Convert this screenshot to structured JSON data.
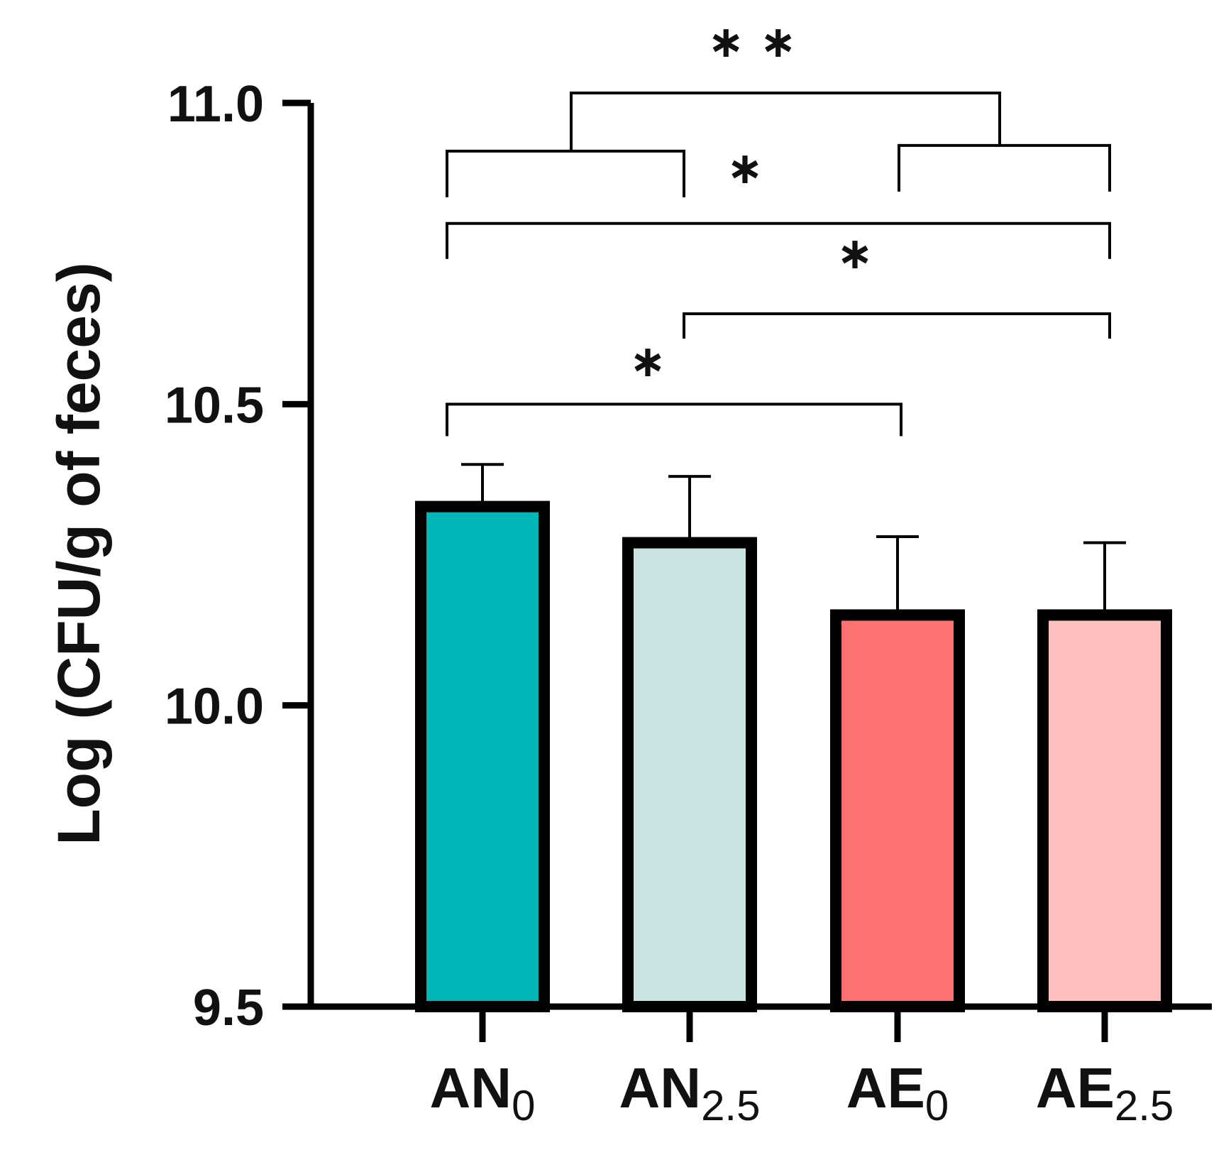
{
  "chart_data": {
    "type": "bar",
    "title": "",
    "xlabel": "",
    "ylabel": "Log (CFU/g of feces)",
    "ylim": [
      9.5,
      11.0
    ],
    "yticks": [
      9.5,
      10.0,
      10.5,
      11.0
    ],
    "ytick_labels": [
      "9.5",
      "10.0",
      "10.5",
      "11.0"
    ],
    "categories": [
      {
        "main": "AN",
        "sub": "0"
      },
      {
        "main": "AN",
        "sub": "2.5"
      },
      {
        "main": "AE",
        "sub": "0"
      },
      {
        "main": "AE",
        "sub": "2.5"
      }
    ],
    "values": [
      10.33,
      10.27,
      10.15,
      10.15
    ],
    "error_upper": [
      10.4,
      10.38,
      10.28,
      10.27
    ],
    "colors": [
      "#00B6B6",
      "#C9E3E3",
      "#FF7070",
      "#FFBFBF"
    ],
    "edge_color": "#000000",
    "grid": false,
    "significance": [
      {
        "label": "∗",
        "from": 0,
        "to": 2,
        "y": 10.5
      },
      {
        "label": "∗",
        "from": 1,
        "to": 3,
        "y": 10.65
      },
      {
        "label": "∗",
        "from": 0,
        "to": 3,
        "y": 10.8
      },
      {
        "label": "∗",
        "from": 2,
        "to": 3,
        "y": 10.92
      },
      {
        "label": "∗∗",
        "from": 0,
        "to": 1,
        "y": 10.92
      }
    ]
  }
}
